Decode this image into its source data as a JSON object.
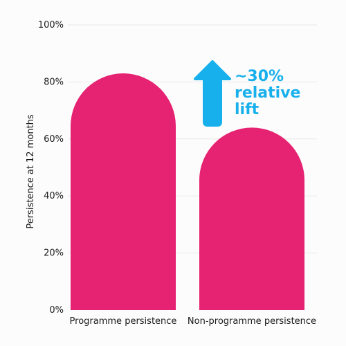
{
  "chart_data": {
    "type": "bar",
    "categories": [
      "Programme persistence",
      "Non-programme persistence"
    ],
    "values": [
      83,
      64
    ],
    "ylabel": "Persistence at 12 months",
    "ylim": [
      0,
      100
    ],
    "yticks": [
      0,
      20,
      40,
      60,
      80,
      100
    ],
    "ytick_labels": [
      "0%",
      "20%",
      "40%",
      "60%",
      "80%",
      "100%"
    ],
    "grid": true,
    "annotation": {
      "lines": [
        "~30%",
        "relative",
        "lift"
      ],
      "icon": "arrow-up-icon"
    }
  },
  "colors": {
    "bar": "#e62272",
    "annotation": "#18b0ec",
    "grid": "#e8e8e8",
    "text": "#1a1a1a"
  }
}
